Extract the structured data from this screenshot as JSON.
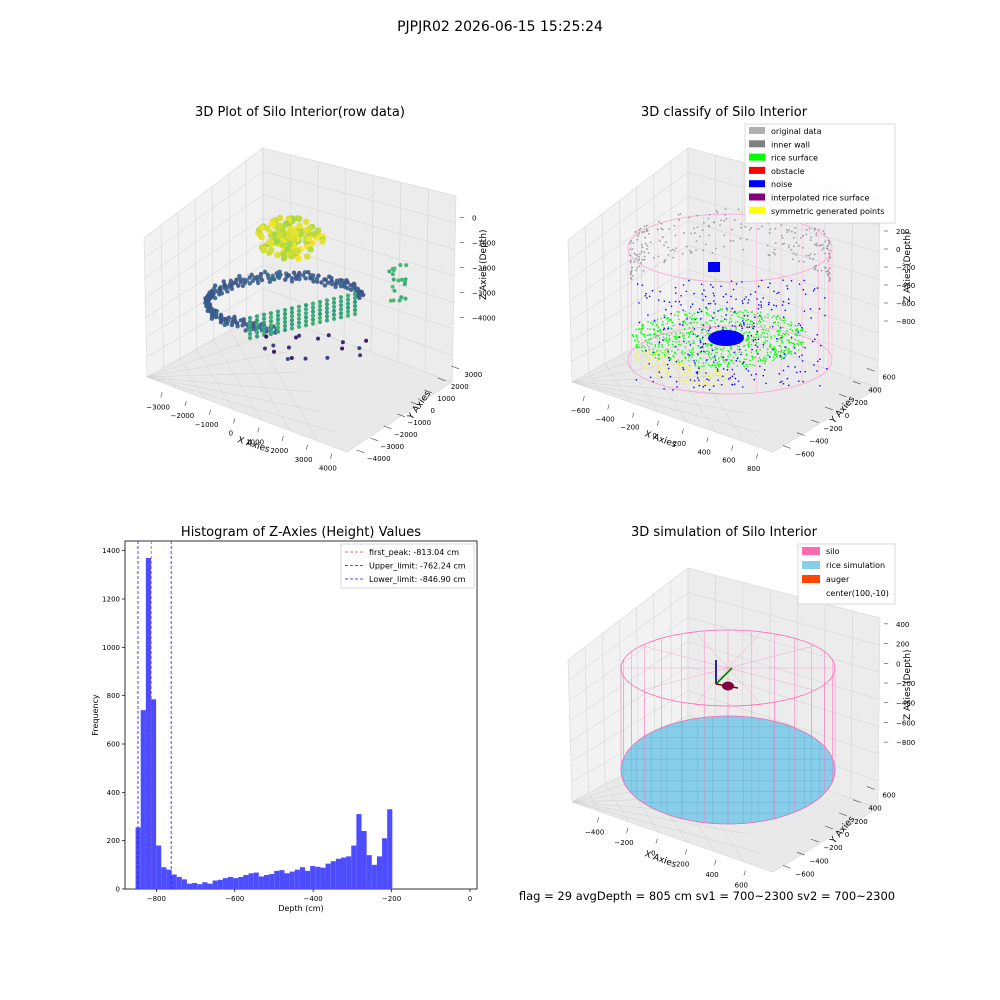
{
  "suptitle": "PJPJR02 2026-06-15 15:25:24",
  "footer": "flag = 29  avgDepth = 805 cm  sv1 = 700~2300  sv2 = 700~2300",
  "colors": {
    "hist": "#4d4dff",
    "peak_line": "#e04040",
    "limit_line": "#1a1aee",
    "inner_wall": "#8c8c8c",
    "rice_surface": "#00ff00",
    "noise": "#0000ff",
    "silo": "#ff69b4",
    "rice_sim": "#87ceeb",
    "auger": "#ff4500"
  },
  "chart_data": [
    {
      "type": "scatter3d",
      "title": "3D Plot of Silo Interior(row data)",
      "xlabel": "X Axies",
      "ylabel": "Y Axies",
      "zlabel": "Z Axies (Depth)",
      "xticks": [
        "−3000",
        "−2000",
        "−1000",
        "0",
        "1000",
        "2000",
        "3000",
        "4000"
      ],
      "yticks": [
        "−4000",
        "−3000",
        "−2000",
        "−1000",
        "0",
        "1000",
        "2000",
        "3000"
      ],
      "zticks": [
        "0",
        "−1000",
        "−2000",
        "−3000",
        "−4000"
      ],
      "xlim": [
        -3500,
        4500
      ],
      "ylim": [
        -4500,
        3500
      ],
      "zlim": [
        -4500,
        300
      ],
      "colormap": "viridis"
    },
    {
      "type": "scatter3d",
      "title": "3D classify of Silo Interior",
      "xlabel": "X Axies",
      "ylabel": "Y Axies",
      "zlabel": "Z Axies (Depth)",
      "xticks": [
        "−600",
        "−400",
        "−200",
        "0",
        "200",
        "400",
        "600",
        "800"
      ],
      "yticks": [
        "−600",
        "−400",
        "−200",
        "0",
        "200",
        "400",
        "600"
      ],
      "zticks": [
        "200",
        "0",
        "−200",
        "−400",
        "−600",
        "−800"
      ],
      "xlim": [
        -700,
        850
      ],
      "ylim": [
        -700,
        700
      ],
      "zlim": [
        -950,
        300
      ],
      "legend": [
        {
          "label": "original data",
          "color": "#b0b0b0"
        },
        {
          "label": "inner wall",
          "color": "#808080"
        },
        {
          "label": "rice surface",
          "color": "#00ff00"
        },
        {
          "label": "obstacle",
          "color": "#ff0000"
        },
        {
          "label": "noise",
          "color": "#0000ff"
        },
        {
          "label": "interpolated rice surface",
          "color": "#800080"
        },
        {
          "label": "symmetric generated points",
          "color": "#ffff00"
        }
      ],
      "legend_loc": "upper right"
    },
    {
      "type": "bar",
      "title": "Histogram of Z-Axies (Height) Values",
      "xlabel": "Depth (cm)",
      "ylabel": "Frequency",
      "xlim": [
        -880,
        18
      ],
      "ylim": [
        0,
        1440
      ],
      "xticks": [
        -800,
        -600,
        -400,
        -200,
        0
      ],
      "xtick_labels": [
        "−800",
        "−600",
        "−400",
        "−200",
        "0"
      ],
      "yticks": [
        0,
        200,
        400,
        600,
        800,
        1000,
        1200,
        1400
      ],
      "bin_start": -853,
      "bin_width": 13.1,
      "values": [
        255,
        740,
        1370,
        785,
        180,
        90,
        80,
        60,
        50,
        40,
        22,
        25,
        20,
        28,
        22,
        35,
        38,
        45,
        50,
        45,
        50,
        58,
        65,
        68,
        52,
        58,
        62,
        75,
        78,
        65,
        72,
        80,
        90,
        75,
        95,
        92,
        88,
        105,
        115,
        125,
        130,
        135,
        180,
        310,
        240,
        140,
        100,
        135,
        210,
        330
      ],
      "vlines": [
        {
          "x": -813.04,
          "label": "first_peak: -813.04 cm",
          "style": "peak"
        },
        {
          "x": -762.24,
          "label": "Upper_limit: -762.24 cm",
          "style": "limit"
        },
        {
          "x": -846.9,
          "label": "Lower_limit: -846.90 cm",
          "style": "limit"
        }
      ],
      "legend_loc": "upper right"
    },
    {
      "type": "surface3d",
      "title": "3D simulation of Silo Interior",
      "xlabel": "X Axies",
      "ylabel": "Y Axies",
      "zlabel": "Z Axies (Depth)",
      "xticks": [
        "−400",
        "−200",
        "0",
        "200",
        "400",
        "600"
      ],
      "yticks": [
        "−600",
        "−400",
        "−200",
        "0",
        "200",
        "400",
        "600"
      ],
      "zticks": [
        "400",
        "200",
        "0",
        "−200",
        "−400",
        "−600",
        "−800"
      ],
      "xlim": [
        -550,
        750
      ],
      "ylim": [
        -700,
        700
      ],
      "zlim": [
        -950,
        500
      ],
      "legend": [
        {
          "label": "silo",
          "color": "#ff69b4"
        },
        {
          "label": "rice simulation",
          "color": "#87ceeb"
        },
        {
          "label": "auger",
          "color": "#ff4500"
        },
        {
          "label": "center(100,-10)",
          "color": ""
        }
      ],
      "legend_loc": "upper right"
    }
  ]
}
